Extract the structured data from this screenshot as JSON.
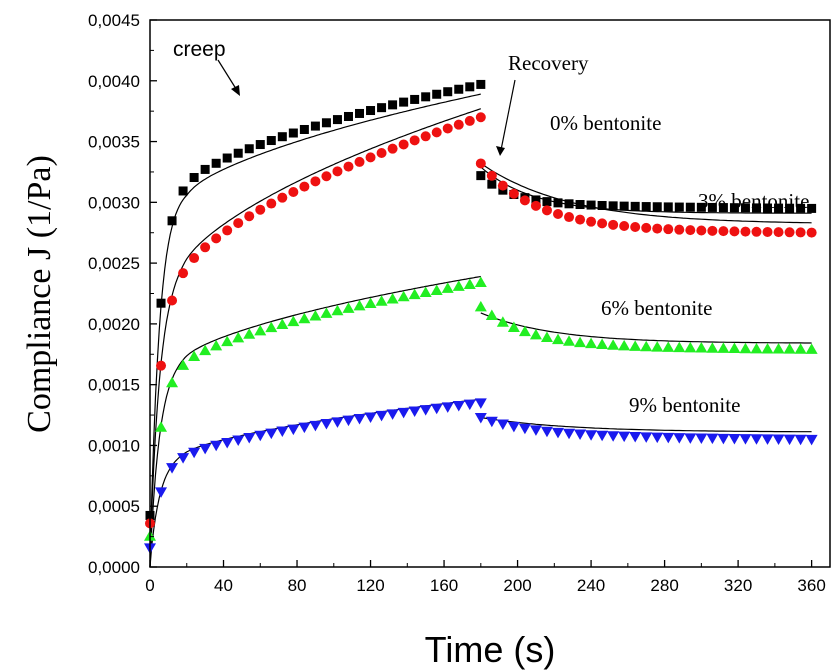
{
  "chart_data": {
    "type": "scatter",
    "title": "",
    "xlabel": "Time (s)",
    "ylabel": "Compliance J (1/Pa)",
    "xlim": [
      0,
      370
    ],
    "ylim": [
      0,
      0.0045
    ],
    "xticks": [
      "0",
      "40",
      "80",
      "120",
      "160",
      "200",
      "240",
      "280",
      "320",
      "360"
    ],
    "yticks": [
      "0,0000",
      "0,0005",
      "0,0010",
      "0,0015",
      "0,0020",
      "0,0025",
      "0,0030",
      "0,0035",
      "0,0040",
      "0,0045"
    ],
    "grid": false,
    "fit_line_color": "#000000",
    "annotations": {
      "creep": "creep",
      "recovery": "Recovery",
      "s0": "0% bentonite",
      "s3": "3% bentonite",
      "s6": "6% bentonite",
      "s9": "9% bentonite"
    },
    "series": [
      {
        "id": "s0",
        "marker": "square",
        "color": "#000000",
        "creep": {
          "A": 0.0028,
          "B": 0.00117,
          "tau": 5,
          "m": 0.5
        },
        "recovery": {
          "drop": 0.00075,
          "A": 0.00023,
          "tau": 18,
          "m": 0.6
        },
        "fit": {
          "c_shift": -8e-05,
          "r_drop": 0.0006,
          "r_A": 0.00038
        }
      },
      {
        "id": "s3",
        "marker": "circle",
        "color": "#ee1111",
        "creep": {
          "A": 0.0019,
          "B": 0.0018,
          "tau": 5,
          "m": 0.5
        },
        "recovery": {
          "drop": 0.00038,
          "A": 0.00053,
          "tau": 30,
          "m": 0.6
        },
        "fit": {
          "c_shift": 7e-05,
          "r_drop": 0.00045,
          "r_A": 0.0005
        }
      },
      {
        "id": "s6",
        "marker": "triangle-up",
        "color": "#22ee22",
        "creep": {
          "A": 0.0014,
          "B": 0.00094,
          "tau": 5,
          "m": 0.5
        },
        "recovery": {
          "drop": 0.0002,
          "A": 0.00031,
          "tau": 25,
          "m": 0.6
        },
        "fit": {
          "c_shift": 5e-05,
          "r_drop": 0.0003,
          "r_A": 0.00025
        }
      },
      {
        "id": "s9",
        "marker": "triangle-down",
        "color": "#1a1aee",
        "creep": {
          "A": 0.00072,
          "B": 0.00063,
          "tau": 5,
          "m": 0.5
        },
        "recovery": {
          "drop": 0.00012,
          "A": 0.00014,
          "tau": 30,
          "m": 0.6
        },
        "fit": {
          "c_shift": 3e-05,
          "r_drop": 0.00015,
          "r_A": 0.00012
        }
      }
    ]
  }
}
